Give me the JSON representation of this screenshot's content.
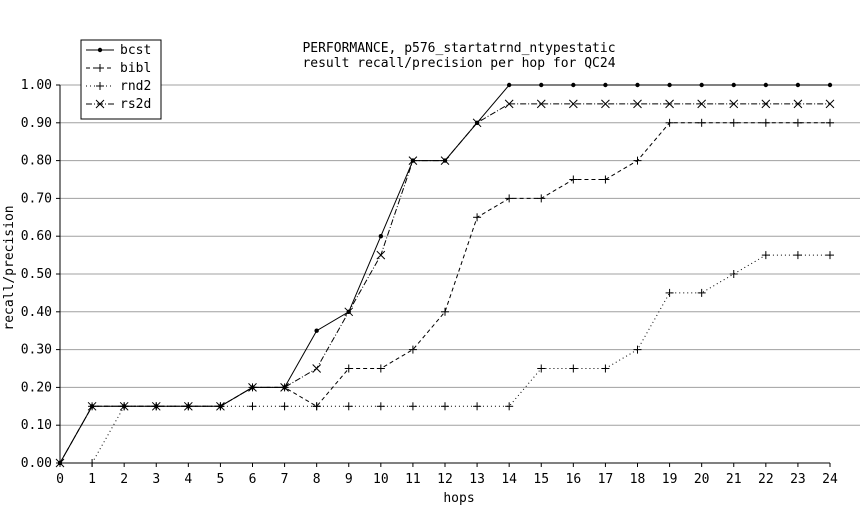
{
  "chart_data": {
    "type": "line",
    "title": [
      "PERFORMANCE, p576_startatrnd_ntypestatic",
      "result recall/precision per hop for QC24"
    ],
    "xlabel": "hops",
    "ylabel": "recall/precision",
    "xlim": [
      0,
      24
    ],
    "ylim": [
      0,
      1.0
    ],
    "grid": "horizontal",
    "legend_position": "top-left",
    "x": [
      0,
      1,
      2,
      3,
      4,
      5,
      6,
      7,
      8,
      9,
      10,
      11,
      12,
      13,
      14,
      15,
      16,
      17,
      18,
      19,
      20,
      21,
      22,
      23,
      24
    ],
    "x_tick_labels": [
      "0",
      "1",
      "2",
      "3",
      "4",
      "5",
      "6",
      "7",
      "8",
      "9",
      "10",
      "11",
      "12",
      "13",
      "14",
      "15",
      "16",
      "17",
      "18",
      "19",
      "20",
      "21",
      "22",
      "23",
      "24"
    ],
    "y_ticks": [
      0,
      0.1,
      0.2,
      0.3,
      0.4,
      0.5,
      0.6,
      0.7,
      0.8,
      0.9,
      1.0
    ],
    "y_tick_labels": [
      "0.00",
      "0.10",
      "0.20",
      "0.30",
      "0.40",
      "0.50",
      "0.60",
      "0.70",
      "0.80",
      "0.90",
      "1.00"
    ],
    "series": [
      {
        "name": "bcst",
        "marker": "dot",
        "dash": "solid",
        "values": [
          0,
          0.15,
          0.15,
          0.15,
          0.15,
          0.15,
          0.2,
          0.2,
          0.35,
          0.4,
          0.6,
          0.8,
          0.8,
          0.9,
          1.0,
          1.0,
          1.0,
          1.0,
          1.0,
          1.0,
          1.0,
          1.0,
          1.0,
          1.0,
          1.0
        ]
      },
      {
        "name": "bibl",
        "marker": "plus",
        "dash": "dashed",
        "values": [
          0,
          0.15,
          0.15,
          0.15,
          0.15,
          0.15,
          0.2,
          0.2,
          0.15,
          0.25,
          0.25,
          0.3,
          0.4,
          0.65,
          0.7,
          0.7,
          0.75,
          0.75,
          0.8,
          0.9,
          0.9,
          0.9,
          0.9,
          0.9,
          0.9
        ]
      },
      {
        "name": "rnd2",
        "marker": "plus",
        "dash": "dotted",
        "values": [
          0,
          0,
          0.15,
          0.15,
          0.15,
          0.15,
          0.15,
          0.15,
          0.15,
          0.15,
          0.15,
          0.15,
          0.15,
          0.15,
          0.15,
          0.25,
          0.25,
          0.25,
          0.3,
          0.45,
          0.45,
          0.5,
          0.55,
          0.55,
          0.55
        ]
      },
      {
        "name": "rs2d",
        "marker": "x",
        "dash": "dashdot",
        "values": [
          0,
          0.15,
          0.15,
          0.15,
          0.15,
          0.15,
          0.2,
          0.2,
          0.25,
          0.4,
          0.55,
          0.8,
          0.8,
          0.9,
          0.95,
          0.95,
          0.95,
          0.95,
          0.95,
          0.95,
          0.95,
          0.95,
          0.95,
          0.95,
          0.95
        ]
      }
    ]
  }
}
